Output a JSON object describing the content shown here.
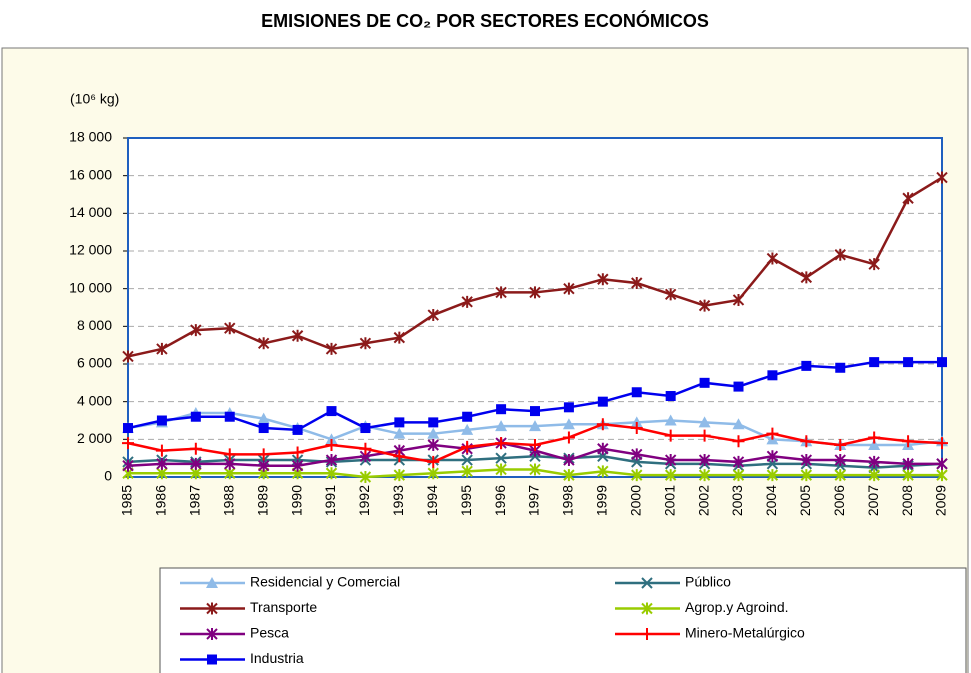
{
  "chart_data": {
    "type": "line",
    "title": "EMISIONES DE CO₂ POR SECTORES ECONÓMICOS",
    "y_label": "(10⁶ kg)",
    "categories": [
      "1985",
      "1986",
      "1987",
      "1988",
      "1989",
      "1990",
      "1991",
      "1992",
      "1993",
      "1994",
      "1995",
      "1996",
      "1997",
      "1998",
      "1999",
      "2000",
      "2001",
      "2002",
      "2003",
      "2004",
      "2005",
      "2006",
      "2007",
      "2008",
      "2009"
    ],
    "ylim": [
      0,
      18000
    ],
    "yticks": [
      0,
      {
        "value": 2000,
        "label": "2 000"
      },
      {
        "value": 4000,
        "label": "4 000"
      },
      {
        "value": 6000,
        "label": "6 000"
      },
      {
        "value": 8000,
        "label": "8 000"
      },
      {
        "value": 10000,
        "label": "10 000"
      },
      {
        "value": 12000,
        "label": "12 000"
      },
      {
        "value": 14000,
        "label": "14 000"
      },
      {
        "value": 16000,
        "label": "16 000"
      },
      {
        "value": 18000,
        "label": "18 000"
      }
    ],
    "grid": true,
    "series": [
      {
        "name": "Residencial y Comercial",
        "color": "#8fbbe8",
        "marker": "triangle",
        "values": [
          2600,
          2900,
          3400,
          3400,
          3100,
          2600,
          2000,
          2700,
          2300,
          2300,
          2500,
          2700,
          2700,
          2800,
          2800,
          2900,
          3000,
          2900,
          2800,
          2000,
          1900,
          1700,
          1700,
          1700,
          1900
        ]
      },
      {
        "name": "Público",
        "color": "#2f6f7f",
        "marker": "x",
        "values": [
          800,
          900,
          800,
          900,
          900,
          900,
          800,
          900,
          900,
          900,
          900,
          1000,
          1100,
          1000,
          1100,
          800,
          700,
          700,
          600,
          700,
          700,
          600,
          500,
          600,
          700
        ]
      },
      {
        "name": "Transporte",
        "color": "#8b1a1a",
        "marker": "star",
        "values": [
          6400,
          6800,
          7800,
          7900,
          7100,
          7500,
          6800,
          7100,
          7400,
          8600,
          9300,
          9800,
          9800,
          10000,
          10500,
          10300,
          9700,
          9100,
          9400,
          11600,
          10600,
          11800,
          11300,
          14800,
          15900
        ]
      },
      {
        "name": "Agrop.y Agroind.",
        "color": "#99cc00",
        "marker": "star",
        "values": [
          200,
          200,
          200,
          200,
          200,
          200,
          200,
          0,
          100,
          200,
          300,
          400,
          400,
          100,
          300,
          100,
          100,
          100,
          100,
          100,
          100,
          100,
          100,
          100,
          100
        ]
      },
      {
        "name": "Pesca",
        "color": "#800080",
        "marker": "star",
        "values": [
          600,
          700,
          700,
          700,
          600,
          600,
          900,
          1100,
          1400,
          1700,
          1500,
          1800,
          1400,
          900,
          1500,
          1200,
          900,
          900,
          800,
          1100,
          900,
          900,
          800,
          700,
          700
        ]
      },
      {
        "name": "Minero-Metalúrgico",
        "color": "#ff0000",
        "marker": "plus",
        "values": [
          1800,
          1400,
          1500,
          1200,
          1200,
          1300,
          1700,
          1500,
          1100,
          800,
          1600,
          1800,
          1700,
          2100,
          2800,
          2600,
          2200,
          2200,
          1900,
          2300,
          1900,
          1700,
          2100,
          1900,
          1800
        ]
      },
      {
        "name": "Industria",
        "color": "#0000ee",
        "marker": "square",
        "values": [
          2600,
          3000,
          3200,
          3200,
          2600,
          2500,
          3500,
          2600,
          2900,
          2900,
          3200,
          3600,
          3500,
          3700,
          4000,
          4500,
          4300,
          5000,
          4800,
          5400,
          5900,
          5800,
          6100,
          6100,
          6100
        ]
      }
    ]
  }
}
